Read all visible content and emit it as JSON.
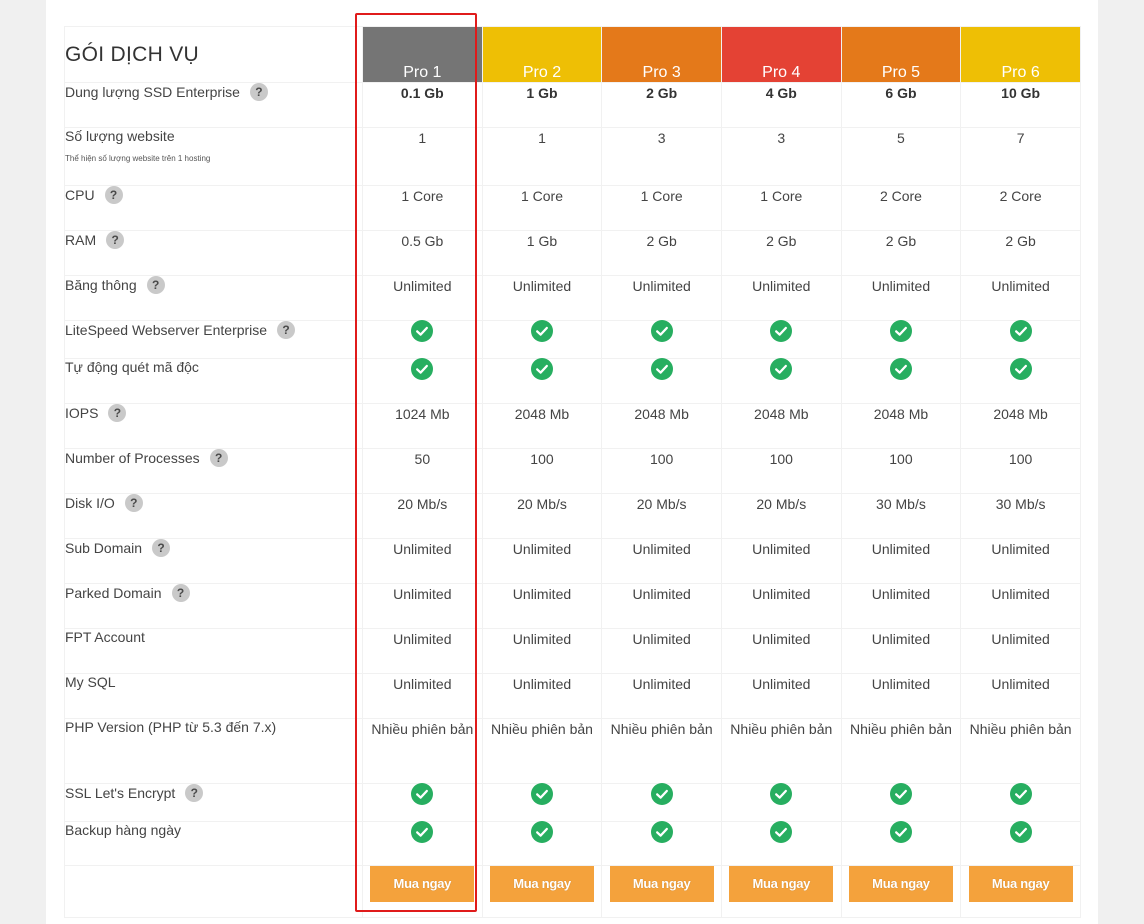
{
  "section_title": "GÓI DỊCH VỤ",
  "plans": [
    {
      "name": "Pro 1",
      "color": "#757575"
    },
    {
      "name": "Pro 2",
      "color": "#eebf05"
    },
    {
      "name": "Pro 3",
      "color": "#e4791a"
    },
    {
      "name": "Pro 4",
      "color": "#e44234"
    },
    {
      "name": "Pro 5",
      "color": "#e4791a"
    },
    {
      "name": "Pro 6",
      "color": "#eebf05"
    }
  ],
  "check_color": "#27ae60",
  "highlight_color": "#e01b1b",
  "button_color": "#f4a23c",
  "buy_label": "Mua ngay",
  "features": [
    {
      "label": "Dung lượng SSD Enterprise",
      "help": true,
      "bold": true,
      "values": [
        "0.1 Gb",
        "1 Gb",
        "2 Gb",
        "4 Gb",
        "6 Gb",
        "10 Gb"
      ]
    },
    {
      "label": "Số lượng website",
      "sublabel": "Thể hiện số lượng website trên 1 hosting",
      "help": false,
      "values": [
        "1",
        "1",
        "3",
        "3",
        "5",
        "7"
      ]
    },
    {
      "label": "CPU",
      "help": true,
      "values": [
        "1 Core",
        "1 Core",
        "1 Core",
        "1 Core",
        "2 Core",
        "2 Core"
      ]
    },
    {
      "label": "RAM",
      "help": true,
      "values": [
        "0.5 Gb",
        "1 Gb",
        "2 Gb",
        "2 Gb",
        "2 Gb",
        "2 Gb"
      ]
    },
    {
      "label": "Băng thông",
      "help": true,
      "values": [
        "Unlimited",
        "Unlimited",
        "Unlimited",
        "Unlimited",
        "Unlimited",
        "Unlimited"
      ]
    },
    {
      "label": "LiteSpeed Webserver Enterprise",
      "help": true,
      "check": true
    },
    {
      "label": "Tự động quét mã độc",
      "help": false,
      "check": true
    },
    {
      "label": "IOPS",
      "help": true,
      "values": [
        "1024 Mb",
        "2048 Mb",
        "2048 Mb",
        "2048 Mb",
        "2048 Mb",
        "2048 Mb"
      ]
    },
    {
      "label": "Number of Processes",
      "help": true,
      "values": [
        "50",
        "100",
        "100",
        "100",
        "100",
        "100"
      ]
    },
    {
      "label": "Disk I/O",
      "help": true,
      "values": [
        "20 Mb/s",
        "20 Mb/s",
        "20 Mb/s",
        "20 Mb/s",
        "30 Mb/s",
        "30 Mb/s"
      ]
    },
    {
      "label": "Sub Domain",
      "help": true,
      "values": [
        "Unlimited",
        "Unlimited",
        "Unlimited",
        "Unlimited",
        "Unlimited",
        "Unlimited"
      ]
    },
    {
      "label": "Parked Domain",
      "help": true,
      "values": [
        "Unlimited",
        "Unlimited",
        "Unlimited",
        "Unlimited",
        "Unlimited",
        "Unlimited"
      ]
    },
    {
      "label": "FPT Account",
      "help": false,
      "values": [
        "Unlimited",
        "Unlimited",
        "Unlimited",
        "Unlimited",
        "Unlimited",
        "Unlimited"
      ]
    },
    {
      "label": "My SQL",
      "help": false,
      "values": [
        "Unlimited",
        "Unlimited",
        "Unlimited",
        "Unlimited",
        "Unlimited",
        "Unlimited"
      ]
    },
    {
      "label": "PHP Version (PHP từ 5.3 đến 7.x)",
      "help": false,
      "values": [
        "Nhiều phiên bản",
        "Nhiều phiên bản",
        "Nhiều phiên bản",
        "Nhiều phiên bản",
        "Nhiều phiên bản",
        "Nhiều phiên bản"
      ]
    },
    {
      "label": "SSL Let's Encrypt",
      "help": true,
      "check": true
    },
    {
      "label": "Backup hàng ngày",
      "help": false,
      "check": true
    }
  ]
}
